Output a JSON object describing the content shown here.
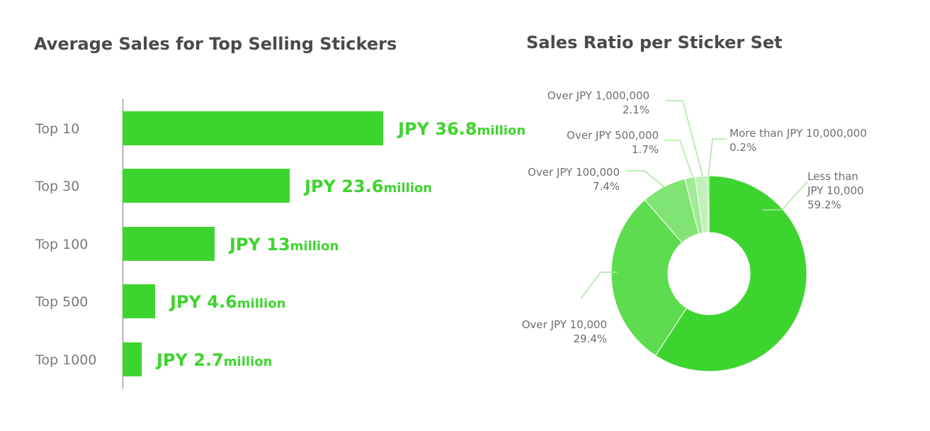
{
  "chart_data": [
    {
      "type": "bar",
      "title": "Average Sales for Top Selling Stickers",
      "categories": [
        "Top 10",
        "Top 30",
        "Top 100",
        "Top 500",
        "Top 1000"
      ],
      "values": [
        36.8,
        23.6,
        13,
        4.6,
        2.7
      ],
      "value_labels": [
        {
          "prefix": "JPY ",
          "number": "36.8",
          "unit": "million"
        },
        {
          "prefix": "JPY ",
          "number": "23.6",
          "unit": "million"
        },
        {
          "prefix": "JPY ",
          "number": "13",
          "unit": "million"
        },
        {
          "prefix": "JPY ",
          "number": "4.6",
          "unit": "million"
        },
        {
          "prefix": "JPY ",
          "number": "2.7",
          "unit": "million"
        }
      ],
      "orientation": "horizontal",
      "xlim": [
        0,
        40
      ],
      "grid": false,
      "bar_color": "#3ed42f"
    },
    {
      "type": "pie",
      "subtype": "donut",
      "title": "Sales Ratio per Sticker Set",
      "slices": [
        {
          "label_lines": [
            "Less than",
            "JPY 10,000"
          ],
          "percent_label": "59.2%",
          "value": 59.2,
          "color": "#3ed42f"
        },
        {
          "label_lines": [
            "Over JPY 10,000"
          ],
          "percent_label": "29.4%",
          "value": 29.4,
          "color": "#5ddc50"
        },
        {
          "label_lines": [
            "Over JPY 100,000"
          ],
          "percent_label": "7.4%",
          "value": 7.4,
          "color": "#7fe471"
        },
        {
          "label_lines": [
            "Over JPY 500,000"
          ],
          "percent_label": "1.7%",
          "value": 1.7,
          "color": "#a2eb96"
        },
        {
          "label_lines": [
            "Over JPY 1,000,000"
          ],
          "percent_label": "2.1%",
          "value": 2.1,
          "color": "#c2f2ba"
        },
        {
          "label_lines": [
            "More than JPY 10,000,000"
          ],
          "percent_label": "0.2%",
          "value": 0.2,
          "color": "#3ed42f"
        }
      ],
      "leader_color": "#a8e89e"
    }
  ]
}
